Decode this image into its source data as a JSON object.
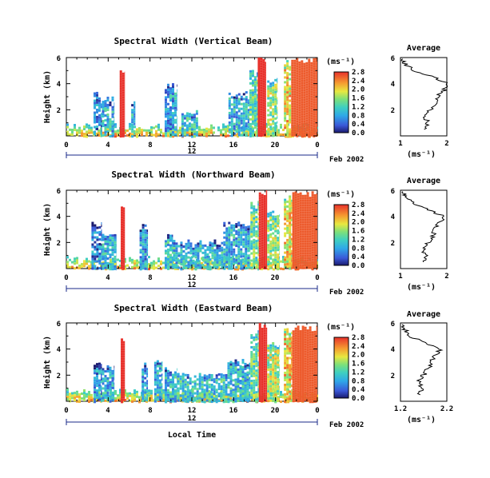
{
  "chart_data": [
    {
      "type": "heatmap",
      "title": "Spectral Width (Vertical Beam)",
      "ylabel": "Height (km)",
      "y_ticks": [
        "6",
        "4",
        "2"
      ],
      "x_ticks": [
        "0",
        "4",
        "8",
        "12",
        "16",
        "20",
        "0"
      ],
      "day_label": "12",
      "date_label": "Feb 2002",
      "ylim": [
        0,
        6
      ],
      "xlim": [
        0,
        24
      ],
      "colorbar": {
        "unit": "(ms⁻¹)",
        "ticks": [
          "0.0",
          "0.4",
          "0.8",
          "1.2",
          "1.6",
          "2.0",
          "2.4",
          "2.8"
        ],
        "range": [
          0,
          2.8
        ]
      },
      "echo_columns": [
        {
          "start_h": 2.6,
          "end_h": 3.4,
          "top_km": 3.2,
          "value": 0.6
        },
        {
          "start_h": 3.4,
          "end_h": 4.6,
          "top_km": 2.8,
          "value": 0.9
        },
        {
          "start_h": 5.1,
          "end_h": 5.6,
          "top_km": 4.9,
          "value": 2.8
        },
        {
          "start_h": 6.2,
          "end_h": 6.6,
          "top_km": 2.6,
          "value": 1.0
        },
        {
          "start_h": 9.4,
          "end_h": 10.6,
          "top_km": 3.8,
          "value": 0.8
        },
        {
          "start_h": 11.0,
          "end_h": 12.6,
          "top_km": 1.8,
          "value": 1.1
        },
        {
          "start_h": 15.5,
          "end_h": 17.5,
          "top_km": 3.2,
          "value": 0.9
        },
        {
          "start_h": 17.5,
          "end_h": 18.3,
          "top_km": 5.0,
          "value": 1.3
        },
        {
          "start_h": 18.3,
          "end_h": 19.1,
          "top_km": 5.9,
          "value": 2.8
        },
        {
          "start_h": 19.2,
          "end_h": 20.2,
          "top_km": 4.2,
          "value": 1.6
        },
        {
          "start_h": 20.8,
          "end_h": 21.5,
          "top_km": 5.6,
          "value": 2.0
        },
        {
          "start_h": 21.5,
          "end_h": 24.0,
          "top_km": 5.8,
          "value": 2.6
        }
      ],
      "average": {
        "title": "Average",
        "xlabel": "(ms⁻¹)",
        "x_ticks": [
          "1",
          "2"
        ],
        "xlim": [
          1,
          2
        ],
        "y_ticks": [
          "6",
          "4",
          "2"
        ],
        "ylim": [
          0,
          6
        ],
        "profile": [
          [
            0.5,
            1.55
          ],
          [
            1.0,
            1.6
          ],
          [
            1.5,
            1.5
          ],
          [
            2.0,
            1.65
          ],
          [
            2.5,
            1.75
          ],
          [
            3.0,
            1.8
          ],
          [
            3.5,
            1.95
          ],
          [
            4.0,
            2.0
          ],
          [
            4.5,
            1.7
          ],
          [
            5.0,
            1.3
          ],
          [
            5.5,
            1.1
          ],
          [
            5.9,
            1.05
          ]
        ]
      }
    },
    {
      "type": "heatmap",
      "title": "Spectral Width (Northward Beam)",
      "ylabel": "Height (km)",
      "y_ticks": [
        "6",
        "4",
        "2"
      ],
      "x_ticks": [
        "0",
        "4",
        "8",
        "12",
        "16",
        "20",
        "0"
      ],
      "day_label": "12",
      "date_label": "Feb 2002",
      "ylim": [
        0,
        6
      ],
      "xlim": [
        0,
        24
      ],
      "colorbar": {
        "unit": "(ms⁻¹)",
        "ticks": [
          "0.0",
          "0.4",
          "0.8",
          "1.2",
          "1.6",
          "2.0",
          "2.4",
          "2.8"
        ],
        "range": [
          0,
          2.8
        ]
      },
      "echo_columns": [
        {
          "start_h": 2.4,
          "end_h": 3.4,
          "top_km": 3.4,
          "value": 0.6
        },
        {
          "start_h": 3.4,
          "end_h": 4.8,
          "top_km": 2.6,
          "value": 0.9
        },
        {
          "start_h": 5.2,
          "end_h": 5.6,
          "top_km": 4.6,
          "value": 2.8
        },
        {
          "start_h": 7.0,
          "end_h": 7.8,
          "top_km": 3.2,
          "value": 0.8
        },
        {
          "start_h": 9.4,
          "end_h": 10.2,
          "top_km": 2.6,
          "value": 1.0
        },
        {
          "start_h": 10.2,
          "end_h": 15.0,
          "top_km": 2.0,
          "value": 1.0
        },
        {
          "start_h": 15.0,
          "end_h": 17.6,
          "top_km": 3.4,
          "value": 0.9
        },
        {
          "start_h": 17.6,
          "end_h": 18.4,
          "top_km": 5.0,
          "value": 1.4
        },
        {
          "start_h": 18.4,
          "end_h": 19.2,
          "top_km": 5.8,
          "value": 2.8
        },
        {
          "start_h": 19.2,
          "end_h": 20.4,
          "top_km": 4.2,
          "value": 1.6
        },
        {
          "start_h": 20.8,
          "end_h": 21.6,
          "top_km": 5.4,
          "value": 2.0
        },
        {
          "start_h": 21.6,
          "end_h": 24.0,
          "top_km": 5.7,
          "value": 2.6
        }
      ],
      "average": {
        "title": "Average",
        "xlabel": "(ms⁻¹)",
        "x_ticks": [
          "1",
          "2"
        ],
        "xlim": [
          1,
          2
        ],
        "y_ticks": [
          "6",
          "4",
          "2"
        ],
        "ylim": [
          0,
          6
        ],
        "profile": [
          [
            0.5,
            1.5
          ],
          [
            1.0,
            1.55
          ],
          [
            1.5,
            1.5
          ],
          [
            2.0,
            1.6
          ],
          [
            2.5,
            1.7
          ],
          [
            3.0,
            1.75
          ],
          [
            3.5,
            1.85
          ],
          [
            4.0,
            1.95
          ],
          [
            4.5,
            1.6
          ],
          [
            5.0,
            1.3
          ],
          [
            5.5,
            1.1
          ],
          [
            5.9,
            1.05
          ]
        ]
      }
    },
    {
      "type": "heatmap",
      "title": "Spectral Width (Eastward Beam)",
      "ylabel": "Height (km)",
      "y_ticks": [
        "6",
        "4",
        "2"
      ],
      "x_ticks": [
        "0",
        "4",
        "8",
        "12",
        "16",
        "20",
        "0"
      ],
      "day_label": "12",
      "date_label": "Feb 2002",
      "xlabel": "Local Time",
      "ylim": [
        0,
        6
      ],
      "xlim": [
        0,
        24
      ],
      "colorbar": {
        "unit": "(ms⁻¹)",
        "ticks": [
          "0.0",
          "0.4",
          "0.8",
          "1.2",
          "1.6",
          "2.0",
          "2.4",
          "2.8"
        ],
        "range": [
          0,
          2.8
        ]
      },
      "echo_columns": [
        {
          "start_h": 2.6,
          "end_h": 3.4,
          "top_km": 3.0,
          "value": 0.7
        },
        {
          "start_h": 3.4,
          "end_h": 4.6,
          "top_km": 2.6,
          "value": 0.9
        },
        {
          "start_h": 5.2,
          "end_h": 5.6,
          "top_km": 4.6,
          "value": 2.8
        },
        {
          "start_h": 7.2,
          "end_h": 7.8,
          "top_km": 2.8,
          "value": 0.8
        },
        {
          "start_h": 8.4,
          "end_h": 9.2,
          "top_km": 3.0,
          "value": 0.9
        },
        {
          "start_h": 9.4,
          "end_h": 10.6,
          "top_km": 2.4,
          "value": 1.0
        },
        {
          "start_h": 10.6,
          "end_h": 15.4,
          "top_km": 2.0,
          "value": 1.1
        },
        {
          "start_h": 15.4,
          "end_h": 17.6,
          "top_km": 3.0,
          "value": 1.0
        },
        {
          "start_h": 17.6,
          "end_h": 18.4,
          "top_km": 5.2,
          "value": 1.4
        },
        {
          "start_h": 18.4,
          "end_h": 19.2,
          "top_km": 5.8,
          "value": 2.8
        },
        {
          "start_h": 19.2,
          "end_h": 20.4,
          "top_km": 4.4,
          "value": 1.7
        },
        {
          "start_h": 20.8,
          "end_h": 21.6,
          "top_km": 5.4,
          "value": 2.0
        },
        {
          "start_h": 21.6,
          "end_h": 24.0,
          "top_km": 5.6,
          "value": 2.6
        }
      ],
      "average": {
        "title": "Average",
        "xlabel": "(ms⁻¹)",
        "x_ticks": [
          "1.2",
          "2.2"
        ],
        "xlim": [
          1.2,
          2.2
        ],
        "y_ticks": [
          "6",
          "4",
          "2"
        ],
        "ylim": [
          0,
          6
        ],
        "profile": [
          [
            0.5,
            1.6
          ],
          [
            1.0,
            1.65
          ],
          [
            1.5,
            1.6
          ],
          [
            2.0,
            1.7
          ],
          [
            2.5,
            1.8
          ],
          [
            3.0,
            1.85
          ],
          [
            3.5,
            1.95
          ],
          [
            4.0,
            2.05
          ],
          [
            4.5,
            1.7
          ],
          [
            5.0,
            1.4
          ],
          [
            5.5,
            1.3
          ],
          [
            5.9,
            1.25
          ]
        ]
      }
    }
  ]
}
